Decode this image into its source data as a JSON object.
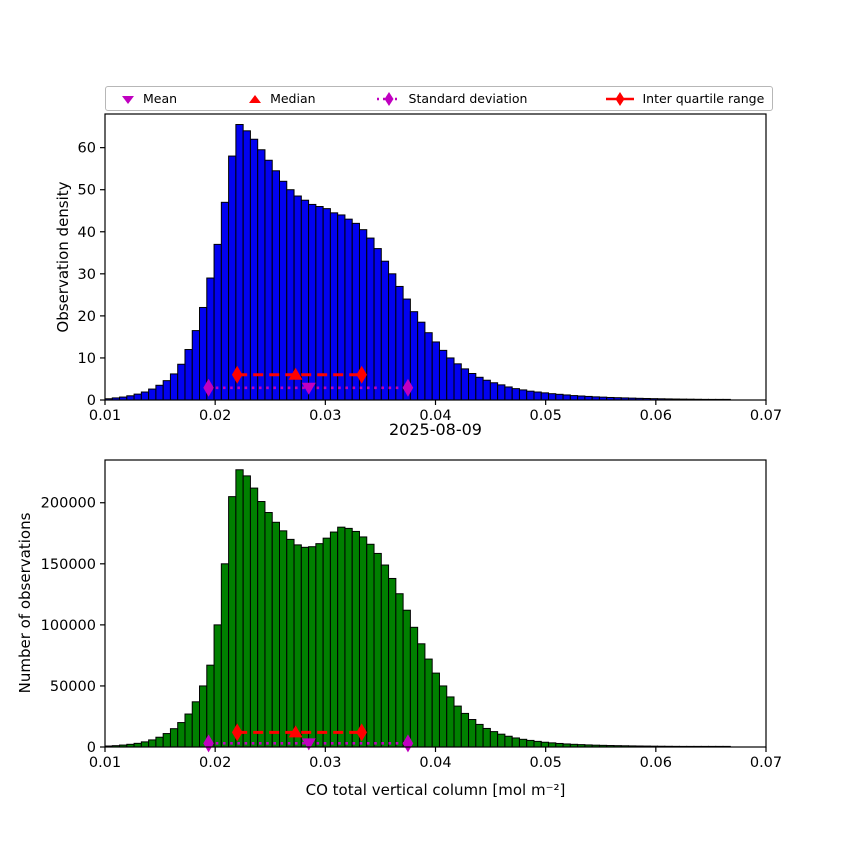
{
  "figure": {
    "title": "2025-08-09",
    "xlabel": "CO total vertical column [mol m⁻²]"
  },
  "legend": {
    "items": [
      {
        "label": "Mean",
        "marker": "triangle-down-icon",
        "color": "#c000c0"
      },
      {
        "label": "Median",
        "marker": "triangle-up-icon",
        "color": "#ff0000"
      },
      {
        "label": "Standard deviation",
        "marker": "thin-diamond-dotted-line-icon",
        "color": "#c000c0"
      },
      {
        "label": "Inter quartile range",
        "marker": "thin-diamond-dashed-line-icon",
        "color": "#ff0000"
      }
    ]
  },
  "stats": {
    "mean": 0.0285,
    "median": 0.0273,
    "std_range": [
      0.0194,
      0.0375
    ],
    "iqr": [
      0.022,
      0.0333
    ]
  },
  "chart_data": [
    {
      "type": "bar",
      "name": "observation-density-histogram",
      "ylabel": "Observation density",
      "bar_color": "#0202f0",
      "edge_color": "#000000",
      "xlim": [
        0.01,
        0.07
      ],
      "ylim": [
        0,
        68
      ],
      "xtick_labels": [
        "0.01",
        "0.02",
        "0.03",
        "0.04",
        "0.05",
        "0.06",
        "0.07"
      ],
      "ytick_labels": [
        "0",
        "10",
        "20",
        "30",
        "40",
        "50",
        "60"
      ],
      "bin_start": 0.01,
      "bin_width": 0.00066,
      "values": [
        0.3,
        0.5,
        0.7,
        1.0,
        1.4,
        1.9,
        2.6,
        3.5,
        4.6,
        6.2,
        8.5,
        12,
        16.5,
        22,
        29,
        37,
        47,
        58,
        65.5,
        64,
        62,
        59.5,
        57,
        54.5,
        52,
        50,
        48.5,
        47.5,
        46.5,
        46,
        45.5,
        44.5,
        44,
        43,
        42,
        40.5,
        38.5,
        36,
        33,
        30,
        27,
        24,
        21,
        18.5,
        16,
        13.8,
        11.8,
        10,
        8.6,
        7.4,
        6.3,
        5.4,
        4.7,
        4.1,
        3.6,
        3.1,
        2.7,
        2.4,
        2.1,
        1.9,
        1.7,
        1.5,
        1.35,
        1.2,
        1.05,
        0.95,
        0.85,
        0.75,
        0.68,
        0.6,
        0.55,
        0.5,
        0.45,
        0.4,
        0.36,
        0.32,
        0.29,
        0.26,
        0.23,
        0.21,
        0.19,
        0.17,
        0.15,
        0.13,
        0.11,
        0.1
      ],
      "markers": {
        "iqr_line_y": 6.0,
        "std_line_y": 2.9
      }
    },
    {
      "type": "bar",
      "name": "number-of-observations-histogram",
      "ylabel": "Number of observations",
      "bar_color": "#008000",
      "edge_color": "#000000",
      "xlim": [
        0.01,
        0.07
      ],
      "ylim": [
        0,
        235000
      ],
      "xtick_labels": [
        "0.01",
        "0.02",
        "0.03",
        "0.04",
        "0.05",
        "0.06",
        "0.07"
      ],
      "ytick_labels": [
        "0",
        "50000",
        "100000",
        "150000",
        "200000"
      ],
      "bin_start": 0.01,
      "bin_width": 0.00066,
      "values": [
        800,
        1100,
        1600,
        2200,
        3000,
        4200,
        5800,
        8000,
        11000,
        15000,
        20000,
        27000,
        37000,
        50000,
        67000,
        100000,
        150000,
        205000,
        227000,
        222000,
        212000,
        201000,
        192000,
        184000,
        177000,
        170000,
        165500,
        163500,
        164000,
        166500,
        171000,
        176000,
        180000,
        179000,
        176500,
        172000,
        166000,
        158500,
        149000,
        138000,
        125500,
        112000,
        98000,
        84500,
        72000,
        60500,
        50000,
        41000,
        33500,
        27500,
        22500,
        18500,
        15200,
        12600,
        10500,
        8800,
        7400,
        6300,
        5400,
        4600,
        3900,
        3400,
        2900,
        2500,
        2200,
        1950,
        1700,
        1500,
        1350,
        1200,
        1100,
        1000,
        900,
        820,
        750,
        680,
        620,
        570,
        520,
        480,
        440,
        400,
        370,
        340,
        310,
        280
      ],
      "markers": {
        "iqr_line_y": 12000,
        "std_line_y": 3000
      }
    }
  ]
}
